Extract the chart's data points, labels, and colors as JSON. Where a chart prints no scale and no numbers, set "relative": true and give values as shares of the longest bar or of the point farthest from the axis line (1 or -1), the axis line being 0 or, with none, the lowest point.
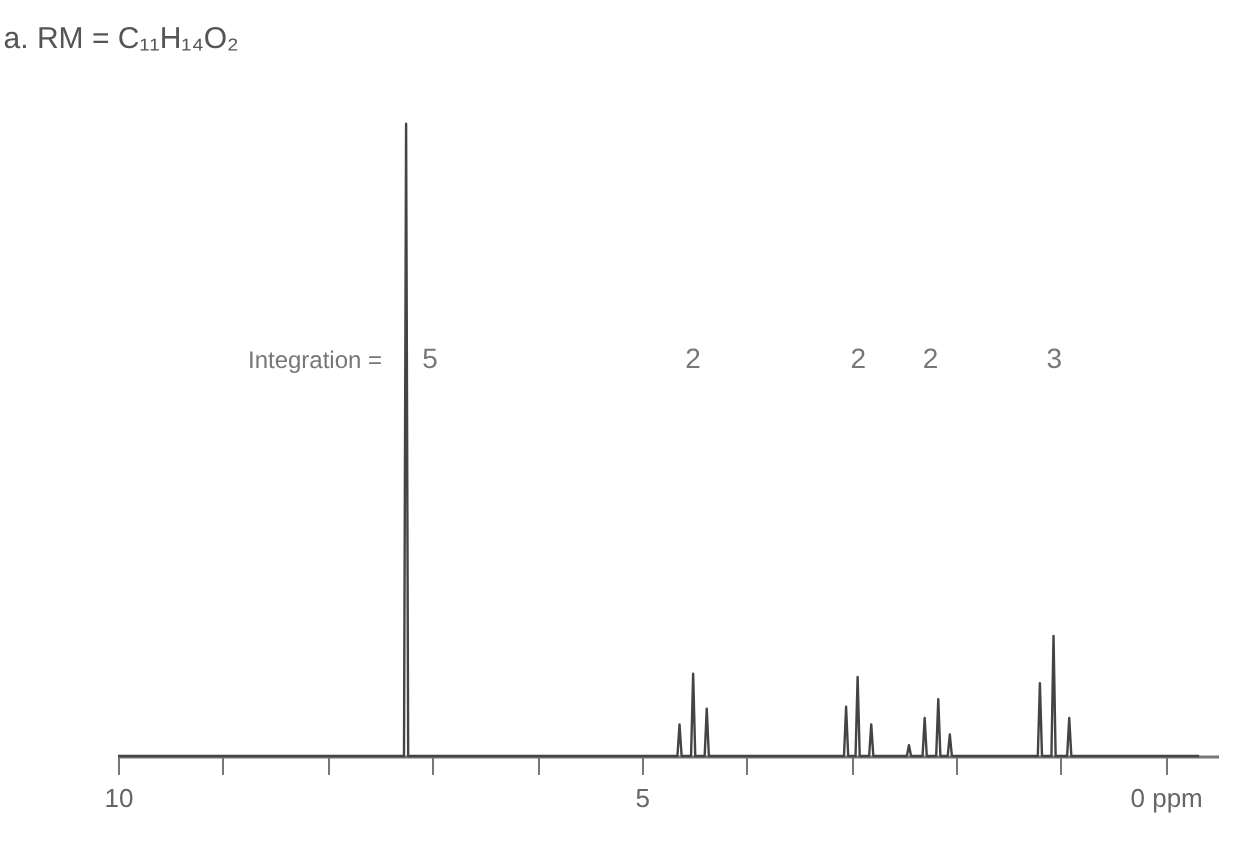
{
  "chart_data": {
    "type": "line",
    "title": "a.   RM = C₁₁H₁₄O₂",
    "relative": true,
    "x": [
      10,
      7.27,
      7.25,
      7.23,
      4.66,
      4.64,
      4.62,
      4.53,
      4.51,
      4.49,
      4.4,
      4.38,
      4.36,
      3.07,
      3.05,
      3.03,
      2.96,
      2.94,
      2.92,
      2.83,
      2.81,
      2.79,
      2.47,
      2.45,
      2.43,
      2.32,
      2.3,
      2.28,
      2.19,
      2.17,
      2.15,
      2.08,
      2.06,
      2.04,
      1.22,
      1.2,
      1.18,
      1.09,
      1.07,
      1.05,
      0.94,
      0.92,
      0.9,
      -0.32
    ],
    "series": [
      {
        "color": "#444444",
        "values": [
          0,
          0,
          1,
          0,
          0,
          0.05,
          0,
          0,
          0.13,
          0,
          0,
          0.075,
          0,
          0,
          0.078,
          0,
          0,
          0.125,
          0,
          0,
          0.05,
          0,
          0,
          0.017,
          0,
          0,
          0.06,
          0,
          0,
          0.09,
          0,
          0,
          0.034,
          0,
          0,
          0.115,
          0,
          0,
          0.19,
          0,
          0,
          0.06,
          0,
          0
        ]
      }
    ],
    "xlim": [
      10,
      -0.5
    ],
    "xticks": [
      10,
      {
        "value": 9,
        "label": null
      },
      {
        "value": 8,
        "label": null
      },
      {
        "value": 7,
        "label": null
      },
      {
        "value": 6,
        "label": null
      },
      5,
      {
        "value": 4,
        "label": null
      },
      {
        "value": 3,
        "label": null
      },
      {
        "value": 2,
        "label": null
      },
      {
        "value": 1,
        "label": null
      },
      {
        "value": 0,
        "label": "0 ppm"
      }
    ],
    "annotations": [
      "Integration =",
      "5",
      "2",
      "2",
      "2",
      "3"
    ],
    "grid": false,
    "tick_labels": "x",
    "line_style": "solid",
    "marker": "none"
  }
}
